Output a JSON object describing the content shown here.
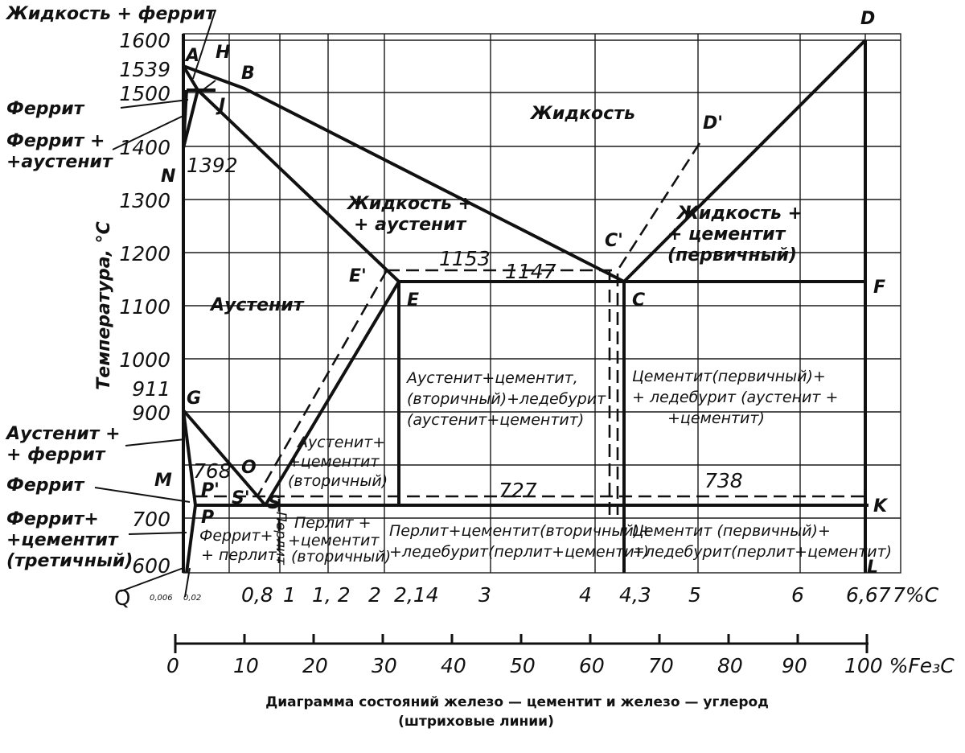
{
  "caption": {
    "line1": "Диаграмма состояний железо — цементит и железо — углерод",
    "line2": "(штриховые линии)"
  },
  "axes": {
    "y_title": "Температура, °С",
    "y_ticks": [
      "1600",
      "1539",
      "1500",
      "1400",
      "1300",
      "1200",
      "1100",
      "1000",
      "911",
      "900",
      "700",
      "600"
    ],
    "x_ticks_c": [
      "0,8",
      "1",
      "1, 2",
      "2",
      "2,14",
      "3",
      "4",
      "4,3",
      "5",
      "6",
      "6,67",
      "7%С"
    ],
    "x_small": [
      "0,006",
      "0,02"
    ],
    "x_origin": "Q",
    "fe3c_ticks": [
      "0",
      "10",
      "20",
      "30",
      "40",
      "50",
      "60",
      "70",
      "80",
      "90",
      "100 %Fe₃C"
    ]
  },
  "points": {
    "A": "A",
    "H": "H",
    "B": "B",
    "J": "J",
    "N": "N",
    "D": "D",
    "D_prime": "D'",
    "C_prime": "C'",
    "E_prime": "E'",
    "E": "E",
    "C": "C",
    "F": "F",
    "G": "G",
    "M": "M",
    "O": "O",
    "S_prime": "S'",
    "S": "S",
    "P_prime": "P'",
    "P": "P",
    "K": "K",
    "L": "L"
  },
  "temps": {
    "t1392": "1392",
    "t1153": "1153",
    "t1147": "1147",
    "t768": "768",
    "t727": "727",
    "t738": "738"
  },
  "left_labels": {
    "liquid_ferrite": "Жидкость + феррит",
    "ferrite_top": "Феррит",
    "ferrite_austenite_1": "Феррит +",
    "ferrite_austenite_2": "+аустенит",
    "austenite_ferrite_1": "Аустенит +",
    "austenite_ferrite_2": "+ феррит",
    "ferrite_bottom": "Феррит",
    "ferrite_cem_1": "Феррит+",
    "ferrite_cem_2": "+цементит",
    "ferrite_cem_3": "(третичный)"
  },
  "regions": {
    "liquid": "Жидкость",
    "liquid_austenite_1": "Жидкость +",
    "liquid_austenite_2": "+ аустенит",
    "liquid_cementite_1": "Жидкость +",
    "liquid_cementite_2": "+ цементит",
    "liquid_cementite_3": "(первичный)",
    "austenite": "Аустенит",
    "aus_cem_led_1": "Аустенит+цементит,",
    "aus_cem_led_2": "(вторичный)+ледебурит",
    "aus_cem_led_3": "(аустенит+цементит)",
    "cem_led_hi_1": "Цементит(первичный)+",
    "cem_led_hi_2": "+ ледебурит (аустенит +",
    "cem_led_hi_3": "+цементит)",
    "aus_cem2_1": "Аустенит+",
    "aus_cem2_2": "+цементит",
    "aus_cem2_3": "(вторичный)",
    "ferrite_pearlite_1": "Феррит+",
    "ferrite_pearlite_2": "+ перлит",
    "pearlite": "Перлит",
    "pearl_cem2_1": "Перлит +",
    "pearl_cem2_2": "+цементит",
    "pearl_cem2_3": "(вторичный)",
    "pearl_cem_led_1": "Перлит+цементит(вторичный)+",
    "pearl_cem_led_2": "+ледебурит(перлит+цементит)",
    "cem_led_lo_1": "Цементит (первичный)+",
    "cem_led_lo_2": "+ледебурит(перлит+цементит)"
  }
}
